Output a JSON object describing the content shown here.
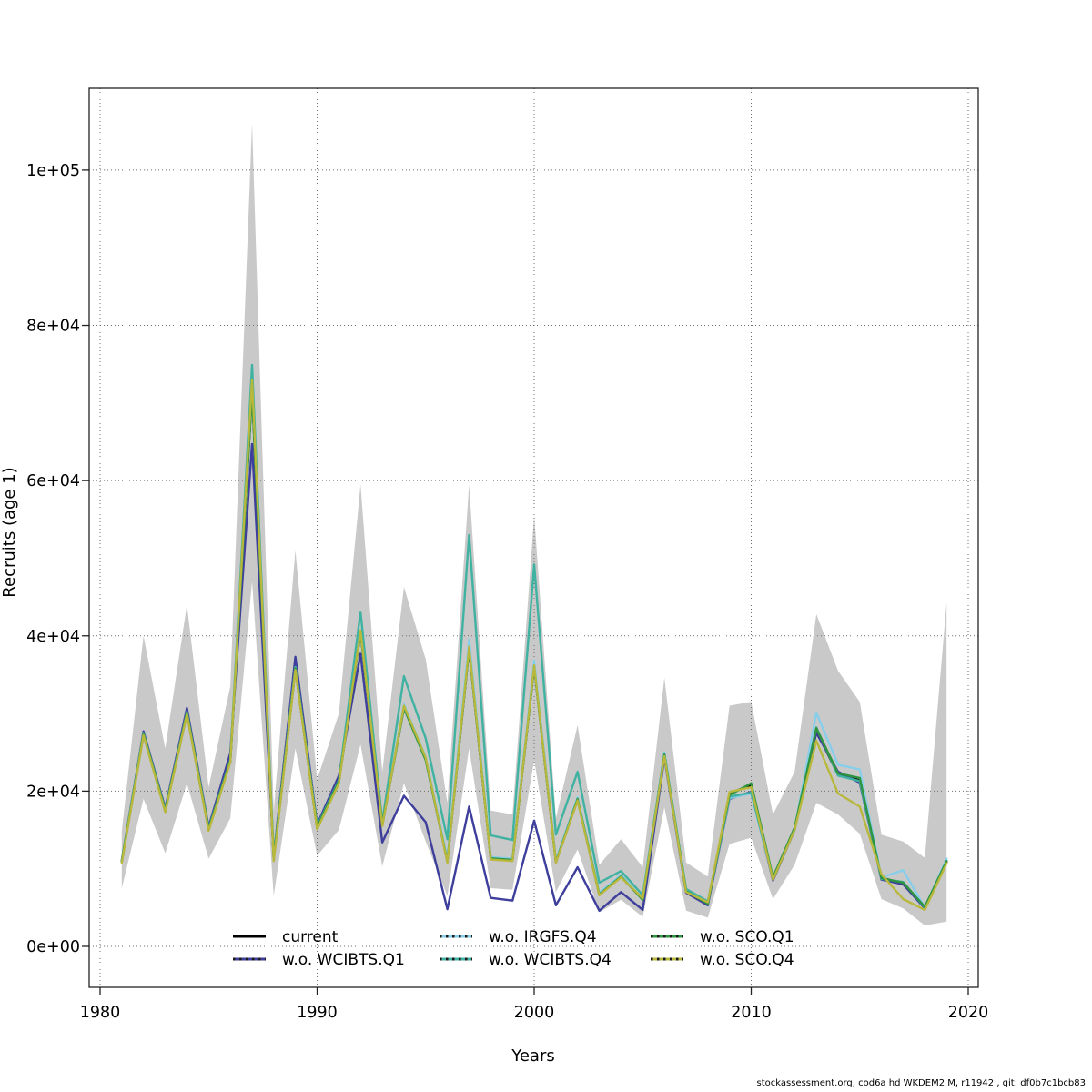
{
  "page": {
    "background": "#ffffff"
  },
  "footer": {
    "text": "stockassessment.org, cod6a  hd WKDEM2  M, r11942 , git: df0b7c1bcb83"
  },
  "chart_data": {
    "type": "line",
    "title": "",
    "xlabel": "Years",
    "ylabel": "Recruits (age 1)",
    "grid": true,
    "legend_position": "bottom-inside",
    "xlim": [
      1979.5,
      2020.5
    ],
    "ylim": [
      -5300,
      110600
    ],
    "x_ticks": {
      "values": [
        1980,
        1990,
        2000,
        2010,
        2020
      ],
      "labels": [
        "1980",
        "1990",
        "2000",
        "2010",
        "2020"
      ]
    },
    "y_ticks": {
      "values": [
        0,
        20000,
        40000,
        60000,
        80000,
        100000
      ],
      "labels": [
        "0e+00",
        "2e+04",
        "4e+04",
        "6e+04",
        "8e+04",
        "1e+05"
      ]
    },
    "years": [
      1981,
      1982,
      1983,
      1984,
      1985,
      1986,
      1987,
      1988,
      1989,
      1990,
      1991,
      1992,
      1993,
      1994,
      1995,
      1996,
      1997,
      1998,
      1999,
      2000,
      2001,
      2002,
      2003,
      2004,
      2005,
      2006,
      2007,
      2008,
      2009,
      2010,
      2011,
      2012,
      2013,
      2014,
      2015,
      2016,
      2017,
      2018,
      2019
    ],
    "band": {
      "name": "95% confidence band (current run)",
      "color": "#C9C9C9",
      "lo": [
        7500,
        19000,
        12000,
        21000,
        11300,
        16500,
        47000,
        6500,
        25500,
        11700,
        15000,
        26000,
        10300,
        21000,
        13500,
        6500,
        25500,
        7500,
        7300,
        24000,
        7000,
        12500,
        4400,
        6000,
        3800,
        17900,
        4600,
        3700,
        13200,
        14000,
        6100,
        10500,
        18500,
        17000,
        14500,
        6100,
        4900,
        2700,
        3200
      ],
      "hi": [
        14800,
        40000,
        25500,
        44000,
        20500,
        33500,
        106000,
        17500,
        51000,
        21500,
        30000,
        59500,
        22500,
        46300,
        37000,
        18500,
        59500,
        17500,
        17000,
        55500,
        16500,
        28500,
        10500,
        13800,
        10200,
        34600,
        10800,
        9000,
        31000,
        31500,
        17000,
        22500,
        42800,
        35500,
        31500,
        14400,
        13500,
        11400,
        44300
      ]
    },
    "series": [
      {
        "name": "current",
        "color": "#000000",
        "legend_style": "solid",
        "values": [
          10900,
          27300,
          17400,
          30000,
          15000,
          23800,
          71500,
          11200,
          35700,
          15200,
          21100,
          40500,
          15600,
          30800,
          24100,
          10900,
          38400,
          11250,
          11050,
          36100,
          10850,
          18900,
          6650,
          8950,
          6100,
          24600,
          7050,
          5600,
          19700,
          20800,
          8750,
          15150,
          27800,
          22100,
          21400,
          8850,
          8100,
          4950,
          10850
        ]
      },
      {
        "name": "w.o. WCIBTS.Q1",
        "color": "#3E3E9C",
        "legend_style": "dark-dotted",
        "values": [
          11100,
          27700,
          17800,
          30700,
          15400,
          24900,
          64700,
          11600,
          37300,
          15700,
          22000,
          37700,
          13400,
          19400,
          16000,
          4800,
          18000,
          6250,
          5900,
          16200,
          5300,
          10200,
          4600,
          7000,
          4700,
          24300,
          6900,
          5300,
          19000,
          19900,
          8500,
          15000,
          27500,
          22500,
          21100,
          8600,
          8000,
          4900,
          10900
        ]
      },
      {
        "name": "w.o. IRGFS.Q4",
        "color": "#87CEEB",
        "legend_style": "dark-dotted",
        "values": [
          11050,
          27450,
          17550,
          30150,
          15150,
          23950,
          73800,
          11450,
          35950,
          15450,
          21350,
          40800,
          15800,
          31200,
          24400,
          11300,
          39500,
          11500,
          11300,
          36800,
          11100,
          19200,
          6900,
          9200,
          6100,
          25000,
          7200,
          5600,
          19100,
          19700,
          8700,
          15100,
          30100,
          23400,
          22800,
          8900,
          9800,
          5000,
          11300
        ]
      },
      {
        "name": "w.o. WCIBTS.Q4",
        "color": "#3FB2A1",
        "legend_style": "dark-dotted",
        "values": [
          11000,
          27500,
          17600,
          30200,
          15200,
          24000,
          74900,
          11500,
          36000,
          15500,
          21400,
          43100,
          16000,
          34800,
          26800,
          13800,
          53000,
          14300,
          13700,
          49200,
          14400,
          22500,
          8200,
          9700,
          6600,
          24800,
          7400,
          5800,
          19300,
          19800,
          8800,
          15200,
          28200,
          22000,
          21300,
          8700,
          8300,
          5000,
          11000
        ]
      },
      {
        "name": "w.o. SCO.Q1",
        "color": "#2E9440",
        "legend_style": "dark-dotted",
        "values": [
          10950,
          27400,
          17500,
          30100,
          15100,
          23900,
          71300,
          11350,
          35800,
          15350,
          21250,
          40400,
          15700,
          30700,
          24000,
          11000,
          38300,
          11350,
          11150,
          36000,
          10900,
          19000,
          6700,
          9000,
          6000,
          24700,
          7100,
          5500,
          19500,
          21000,
          8900,
          15300,
          28100,
          22300,
          21700,
          8800,
          8200,
          5100,
          11000
        ]
      },
      {
        "name": "w.o. SCO.Q4",
        "color": "#B8B83C",
        "legend_style": "dark-dotted",
        "values": [
          10800,
          27200,
          17300,
          29900,
          14900,
          23700,
          73000,
          11000,
          35600,
          15100,
          21000,
          40700,
          15500,
          31000,
          24300,
          10800,
          38600,
          11200,
          11000,
          36200,
          10800,
          18800,
          6600,
          8900,
          6200,
          24500,
          7000,
          5700,
          19900,
          20500,
          8600,
          15000,
          26500,
          19700,
          18000,
          9300,
          6100,
          4700,
          10700
        ]
      }
    ],
    "legend": {
      "rows": 2,
      "cols": 3,
      "order": "column-major"
    }
  }
}
